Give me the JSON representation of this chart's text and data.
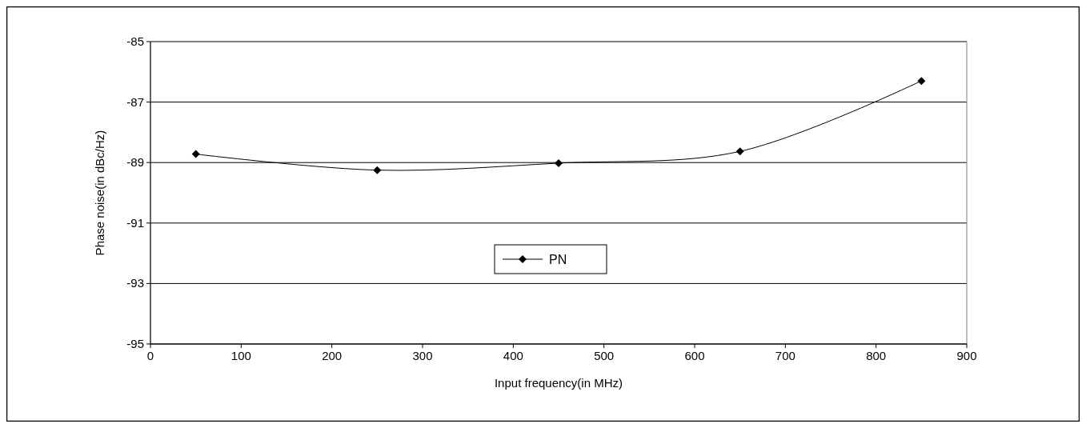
{
  "chart_data": {
    "type": "line",
    "xlabel": "Input frequency(in MHz)",
    "ylabel": "Phase noise(in dBc/Hz)",
    "x": [
      50,
      250,
      450,
      650,
      850
    ],
    "series": [
      {
        "name": "PN",
        "color": "#000000",
        "values": [
          -88.72,
          -89.25,
          -89.02,
          -88.63,
          -86.3
        ]
      }
    ],
    "xlim": [
      0,
      900
    ],
    "xticks": [
      0,
      100,
      200,
      300,
      400,
      500,
      600,
      700,
      800,
      900
    ],
    "ylim": [
      -95,
      -85
    ],
    "yticks": [
      -95,
      -93,
      -91,
      -89,
      -87,
      -85
    ],
    "grid": "y",
    "legend": "bottom",
    "marker": "diamond",
    "line_style": "solid"
  }
}
